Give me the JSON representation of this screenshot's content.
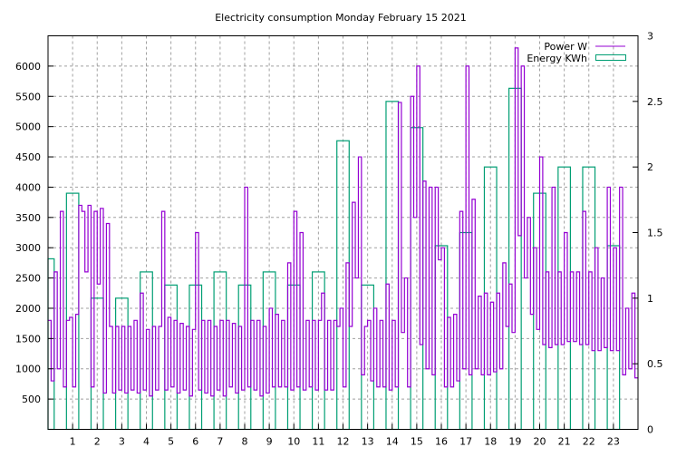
{
  "chart_data": {
    "type": "line",
    "title": "Electricity consumption Monday February 15 2021",
    "xlabel": "",
    "ylabel": "",
    "xlim": [
      0,
      24
    ],
    "ylim": [
      0,
      6500
    ],
    "y2lim": [
      0,
      3
    ],
    "grid": true,
    "legend_position": "top-right",
    "x_ticks": [
      "1",
      "2",
      "3",
      "4",
      "5",
      "6",
      "7",
      "8",
      "9",
      "10",
      "11",
      "12",
      "13",
      "14",
      "15",
      "16",
      "17",
      "18",
      "19",
      "20",
      "21",
      "22",
      "23"
    ],
    "y_ticks": [
      "500",
      "1000",
      "1500",
      "2000",
      "2500",
      "3000",
      "3500",
      "4000",
      "4500",
      "5000",
      "5500",
      "6000"
    ],
    "y2_ticks": [
      "0",
      "0.5",
      "1",
      "1.5",
      "2",
      "2.5",
      "3"
    ],
    "colors": {
      "power": "#9400d3",
      "energy": "#009e73",
      "grid": "#a0a0a0"
    },
    "series": [
      {
        "name": "Power W",
        "style": "histeps",
        "axis": "y",
        "samples_per_hour": 8,
        "values": [
          1800,
          800,
          2600,
          1000,
          3600,
          700,
          1800,
          1850,
          700,
          1900,
          3700,
          3600,
          2600,
          3700,
          700,
          3600,
          2400,
          3650,
          600,
          3400,
          1700,
          600,
          1700,
          650,
          1700,
          600,
          1700,
          650,
          1800,
          600,
          2250,
          650,
          1650,
          550,
          1700,
          650,
          1700,
          3600,
          650,
          1850,
          700,
          1800,
          600,
          1750,
          650,
          1700,
          550,
          1650,
          3250,
          650,
          1800,
          600,
          1800,
          550,
          1700,
          650,
          1800,
          550,
          1800,
          700,
          1750,
          600,
          1700,
          650,
          4000,
          700,
          1800,
          650,
          1800,
          550,
          1700,
          600,
          2000,
          700,
          1900,
          700,
          1800,
          700,
          2750,
          650,
          3600,
          700,
          3250,
          650,
          1800,
          700,
          1800,
          650,
          1800,
          2250,
          650,
          1800,
          650,
          1800,
          1700,
          2000,
          700,
          2750,
          1700,
          3750,
          2500,
          4500,
          900,
          1700,
          1800,
          800,
          2000,
          700,
          1800,
          700,
          2400,
          650,
          1800,
          700,
          5400,
          1600,
          2500,
          700,
          5500,
          3500,
          6000,
          1400,
          4100,
          1000,
          4000,
          900,
          4000,
          2800,
          3000,
          700,
          1850,
          700,
          1900,
          800,
          3600,
          1000,
          6000,
          900,
          3800,
          1000,
          2200,
          900,
          2250,
          900,
          2100,
          950,
          2250,
          1000,
          2750,
          1700,
          2400,
          1600,
          6300,
          3200,
          6000,
          2500,
          3500,
          1900,
          3000,
          1650,
          4500,
          1400,
          2600,
          1350,
          4000,
          1400,
          2600,
          1400,
          3250,
          1450,
          2600,
          1450,
          2600,
          1400,
          3600,
          1400,
          2600,
          1300,
          3000,
          1300,
          2500,
          1350,
          4000,
          1300,
          3000,
          1300,
          4000,
          900,
          2000,
          1000,
          2250,
          850
        ]
      },
      {
        "name": "Energy KWh",
        "style": "boxes",
        "axis": "y2",
        "x": [
          0,
          1,
          2,
          3,
          4,
          5,
          6,
          7,
          8,
          9,
          10,
          11,
          12,
          13,
          14,
          15,
          16,
          17,
          18,
          19,
          20,
          21,
          22,
          23
        ],
        "values": [
          1.3,
          1.8,
          1.0,
          1.0,
          1.2,
          1.1,
          1.1,
          1.2,
          1.1,
          1.2,
          1.1,
          1.2,
          2.2,
          1.1,
          2.5,
          2.3,
          1.4,
          1.5,
          2.0,
          2.6,
          1.8,
          2.0,
          2.0,
          1.4
        ]
      }
    ]
  }
}
